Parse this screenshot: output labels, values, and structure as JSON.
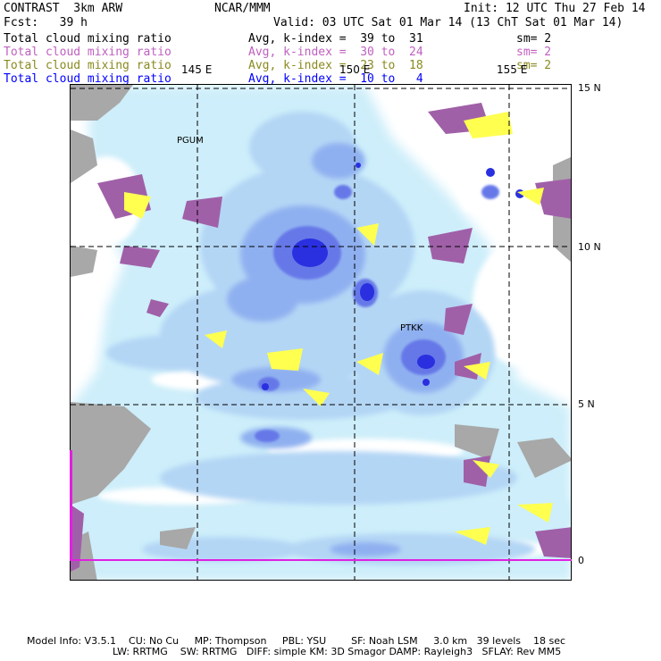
{
  "header": {
    "model": "CONTRAST  3km ARW",
    "org": "NCAR/MMM",
    "init": "Init: 12 UTC Thu 27 Feb 14",
    "fcst": "Fcst:   39 h",
    "valid": "Valid: 03 UTC Sat 01 Mar 14 (13 ChT Sat 01 Mar 14)"
  },
  "fields": [
    {
      "label": "Total cloud mixing ratio",
      "avg": "Avg, k-index =  39 to  31",
      "sm": "sm= 2",
      "color": "#000000"
    },
    {
      "label": "Total cloud mixing ratio",
      "avg": "Avg, k-index =  30 to  24",
      "sm": "sm= 2",
      "color": "#c060c0"
    },
    {
      "label": "Total cloud mixing ratio",
      "avg": "Avg, k-index =  23 to  18",
      "sm": "sm= 2",
      "color": "#8a8a20"
    },
    {
      "label": "Total cloud mixing ratio",
      "avg": "Avg, k-index =  10 to   4",
      "sm": "",
      "color": "#0000ff"
    }
  ],
  "map": {
    "lon_labels": [
      "145 E",
      "150 E",
      "155 E"
    ],
    "lat_labels": [
      "15 N",
      "10 N",
      "5 N",
      "0"
    ],
    "stations": [
      "PGUM",
      "PTKK"
    ],
    "colors": {
      "light_cyan": "#cdeefa",
      "pale_blue": "#b4d6f5",
      "mid_blue": "#8fb0f0",
      "blue": "#6678e8",
      "deep_blue": "#2a30e0",
      "gray": "#a8a8a8",
      "purple": "#a060a8",
      "yellow": "#ffff50",
      "magenta": "#e020e0"
    }
  },
  "footer": {
    "line1": "Model Info: V3.5.1    CU: No Cu     MP: Thompson     PBL: YSU        SF: Noah LSM     3.0 km   39 levels    18 sec",
    "line2": "LW: RRTMG    SW: RRTMG   DIFF: simple KM: 3D Smagor DAMP: Rayleigh3   SFLAY: Rev MM5"
  }
}
